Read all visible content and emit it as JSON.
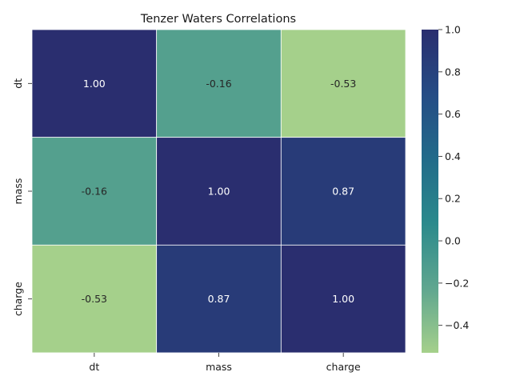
{
  "chart_data": {
    "type": "heatmap",
    "title": "Tenzer Waters Correlations",
    "xlabel": "",
    "ylabel": "",
    "x_categories": [
      "dt",
      "mass",
      "charge"
    ],
    "y_categories": [
      "dt",
      "mass",
      "charge"
    ],
    "matrix": [
      [
        1.0,
        -0.16,
        -0.53
      ],
      [
        -0.16,
        1.0,
        0.87
      ],
      [
        -0.53,
        0.87,
        1.0
      ]
    ],
    "cell_labels": [
      [
        "1.00",
        "-0.16",
        "-0.53"
      ],
      [
        "-0.16",
        "1.00",
        "0.87"
      ],
      [
        "-0.53",
        "0.87",
        "1.00"
      ]
    ],
    "colorbar": {
      "range": [
        -0.53,
        1.0
      ],
      "ticks": [
        -0.4,
        -0.2,
        0.0,
        0.2,
        0.4,
        0.6,
        0.8,
        1.0
      ],
      "tick_labels": [
        "−0.4",
        "−0.2",
        "0.0",
        "0.2",
        "0.4",
        "0.6",
        "0.8",
        "1.0"
      ]
    },
    "colormap": {
      "name": "crest",
      "stops": [
        "#a5d08b",
        "#5fa68f",
        "#2b8a8c",
        "#226b8a",
        "#254c85",
        "#2a2e6f"
      ]
    },
    "annotation_colors": {
      "light": "#ffffff",
      "dark": "#262626"
    },
    "grid": false,
    "legend": "colorbar-right"
  }
}
